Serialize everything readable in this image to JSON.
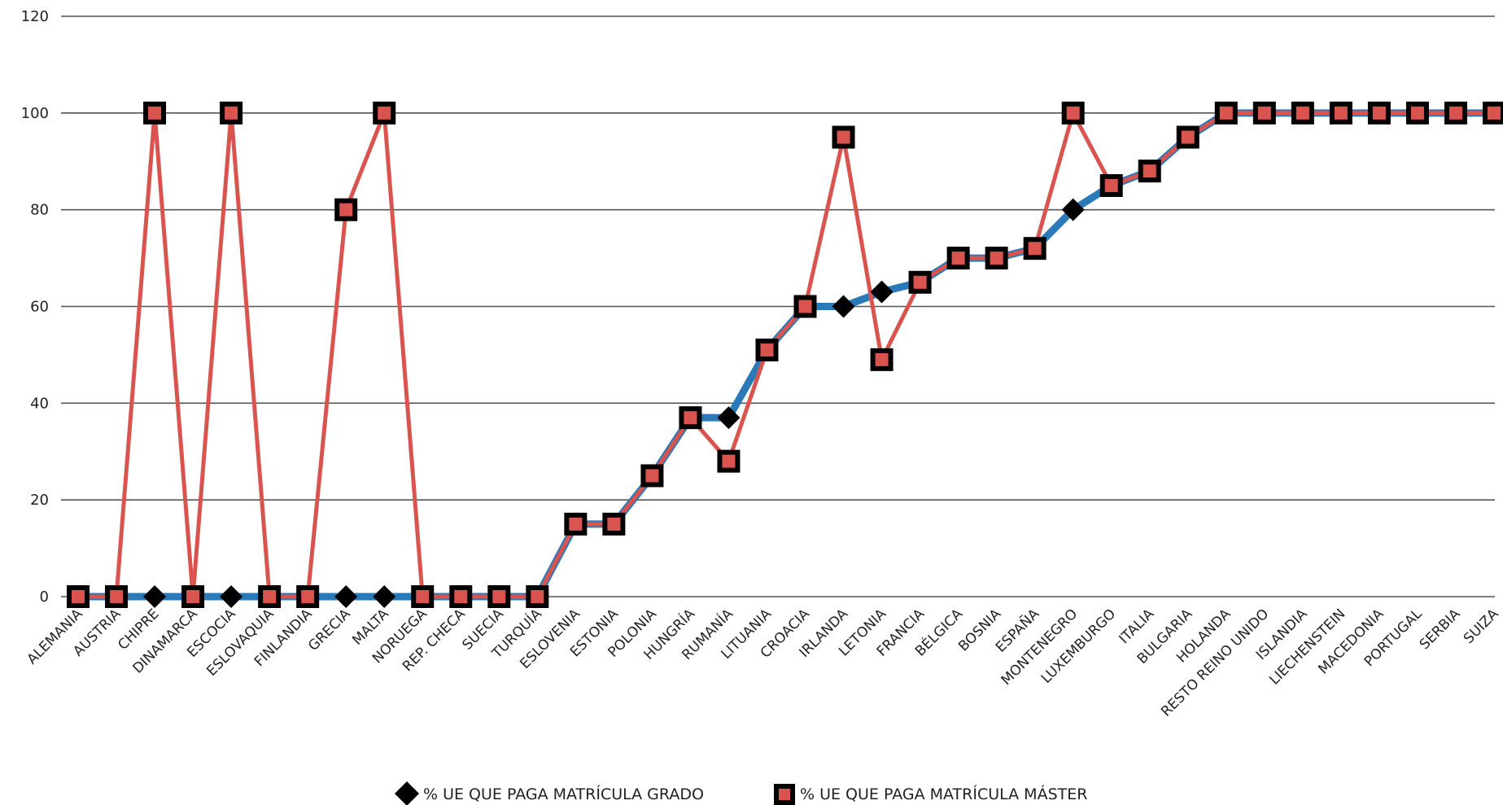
{
  "chart_data": {
    "type": "line",
    "title": "",
    "xlabel": "",
    "ylabel": "",
    "ylim": [
      0,
      120
    ],
    "yticks": [
      0,
      20,
      40,
      60,
      80,
      100,
      120
    ],
    "grid": true,
    "legend_position": "bottom-center",
    "categories": [
      "ALEMANIA",
      "AUSTRIA",
      "CHIPRE",
      "DINAMARCA",
      "ESCOCIA",
      "ESLOVAQUIA",
      "FINLANDIA",
      "GRECIA",
      "MALTA",
      "NORUEGA",
      "REP. CHECA",
      "SUECIA",
      "TURQUÍA",
      "ESLOVENIA",
      "ESTONIA",
      "POLONIA",
      "HUNGRÍA",
      "RUMANÍA",
      "LITUANIA",
      "CROACIA",
      "IRLANDA",
      "LETONIA",
      "FRANCIA",
      "BÉLGICA",
      "BOSNIA",
      "ESPAÑA",
      "MONTENEGRO",
      "LUXEMBURGO",
      "ITALIA",
      "BULGARIA",
      "HOLANDA",
      "RESTO REINO UNIDO",
      "ISLANDIA",
      "LIECHENSTEIN",
      "MACEDONIA",
      "PORTUGAL",
      "SERBIA",
      "SUIZA"
    ],
    "series": [
      {
        "name": "% UE QUE PAGA MATRÍCULA GRADO",
        "color": "#2a7ab9",
        "marker": "diamond",
        "values": [
          0,
          0,
          0,
          0,
          0,
          0,
          0,
          0,
          0,
          0,
          0,
          0,
          0,
          15,
          15,
          25,
          37,
          37,
          51,
          60,
          60,
          63,
          65,
          70,
          70,
          72,
          80,
          85,
          88,
          95,
          100,
          100,
          100,
          100,
          100,
          100,
          100,
          100
        ]
      },
      {
        "name": "% UE QUE PAGA MATRÍCULA MÁSTER",
        "color": "#d9534f",
        "marker": "square",
        "values": [
          0,
          0,
          100,
          0,
          100,
          0,
          0,
          80,
          100,
          0,
          0,
          0,
          0,
          15,
          15,
          25,
          37,
          28,
          51,
          60,
          95,
          49,
          65,
          70,
          70,
          72,
          100,
          85,
          88,
          95,
          100,
          100,
          100,
          100,
          100,
          100,
          100,
          100
        ]
      }
    ]
  }
}
